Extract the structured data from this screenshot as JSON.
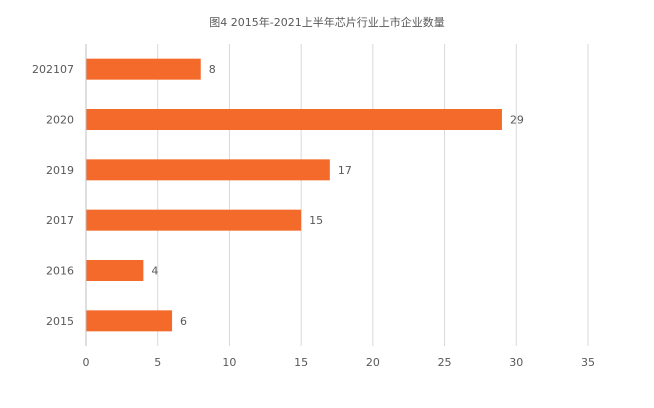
{
  "chart_data": {
    "type": "bar",
    "orientation": "horizontal",
    "title": "图4 2015年-2021上半年芯片行业上市企业数量",
    "categories": [
      "202107",
      "2020",
      "2019",
      "2017",
      "2016",
      "2015"
    ],
    "values": [
      8,
      29,
      17,
      15,
      4,
      6
    ],
    "xlim": [
      0,
      35
    ],
    "xticks": [
      0,
      5,
      10,
      15,
      20,
      25,
      30,
      35
    ],
    "grid": "vertical",
    "legend": "none",
    "bar_color": "#F46A2B",
    "grid_color": "#D9D9D9",
    "axis_color": "#BFBFBF",
    "text_color": "#595959"
  }
}
